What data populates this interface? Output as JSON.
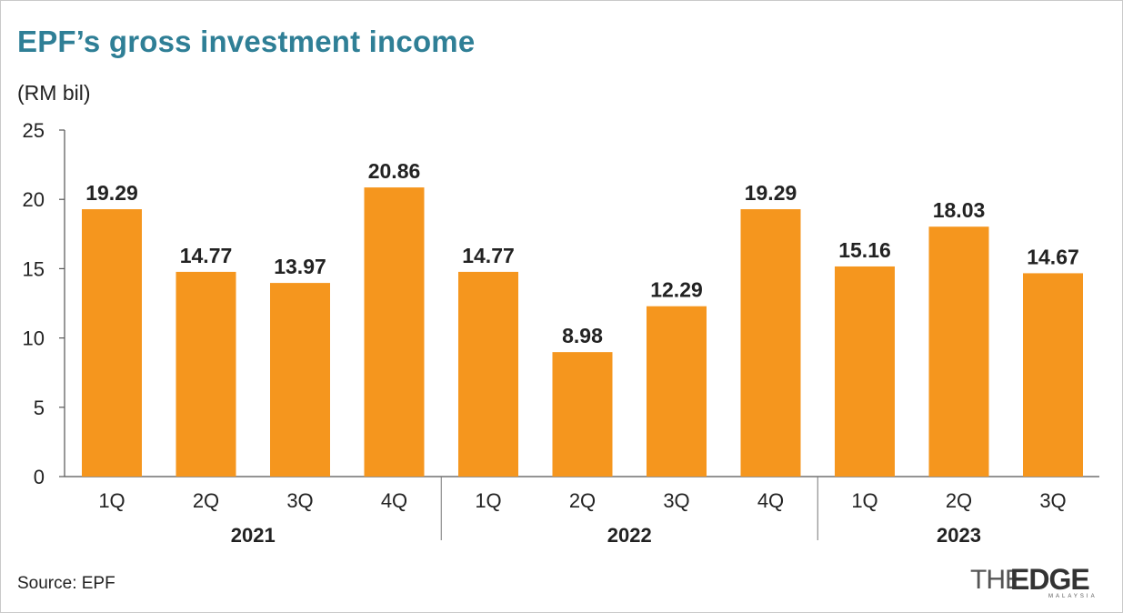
{
  "chart_data": {
    "type": "bar",
    "title": "EPF’s gross investment income",
    "unit_label": "(RM bil)",
    "categories": [
      "1Q",
      "2Q",
      "3Q",
      "4Q",
      "1Q",
      "2Q",
      "3Q",
      "4Q",
      "1Q",
      "2Q",
      "3Q"
    ],
    "groups": [
      {
        "label": "2021",
        "count": 4
      },
      {
        "label": "2022",
        "count": 4
      },
      {
        "label": "2023",
        "count": 3
      }
    ],
    "values": [
      19.29,
      14.77,
      13.97,
      20.86,
      14.77,
      8.98,
      12.29,
      19.29,
      15.16,
      18.03,
      14.67
    ],
    "value_labels": [
      "19.29",
      "14.77",
      "13.97",
      "20.86",
      "14.77",
      "8.98",
      "12.29",
      "19.29",
      "15.16",
      "18.03",
      "14.67"
    ],
    "ylim": [
      0,
      25
    ],
    "yticks": [
      0,
      5,
      10,
      15,
      20,
      25
    ],
    "grid": false,
    "bar_color": "#f5961e"
  },
  "source": "Source: EPF",
  "logo": {
    "part1": "THE",
    "part2": "EDGE",
    "part3": "MALAYSIA"
  }
}
